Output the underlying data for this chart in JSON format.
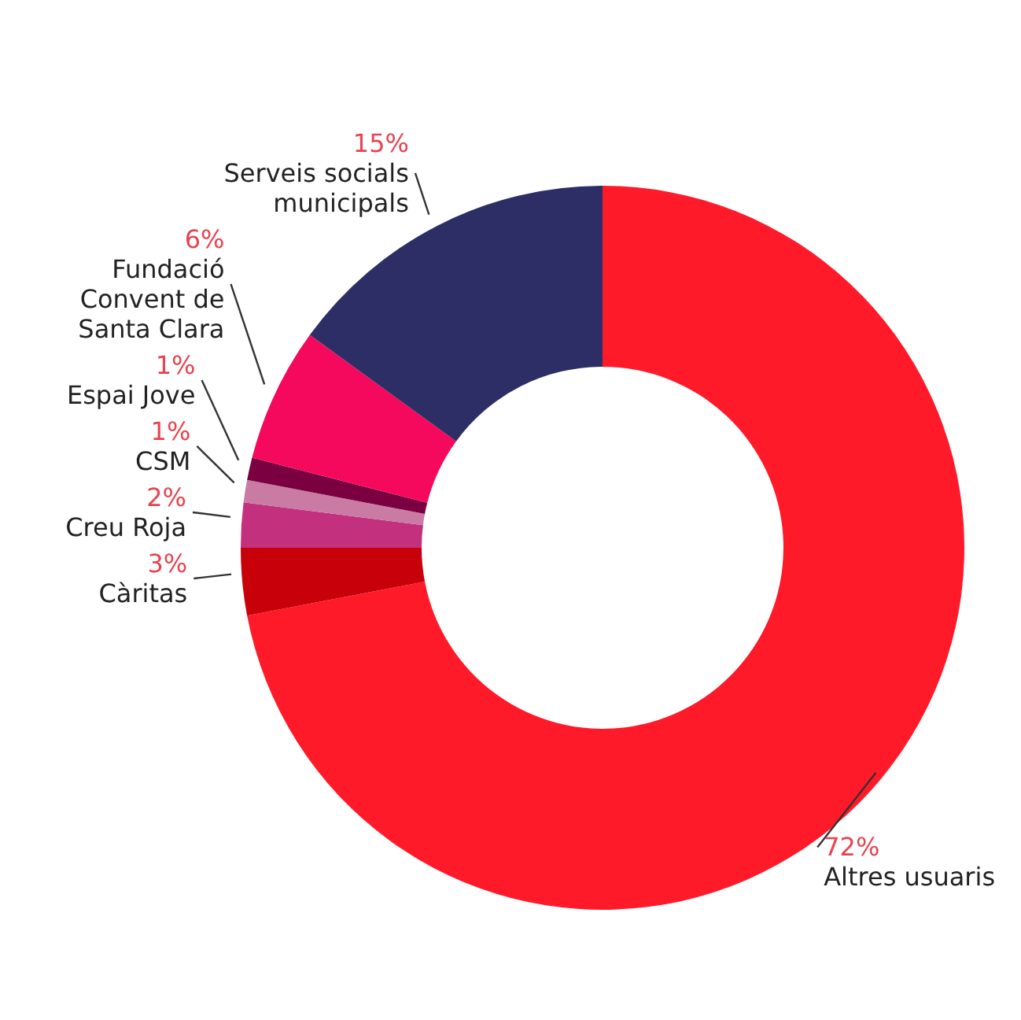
{
  "chart_data": {
    "type": "donut",
    "categories": [
      "Altres usuaris",
      "Càritas",
      "Creu Roja",
      "CSM",
      "Espai Jove",
      "Fundació Convent de Santa Clara",
      "Serveis socials municipals"
    ],
    "values": [
      72,
      3,
      2,
      1,
      1,
      6,
      15
    ],
    "value_labels": [
      "72%",
      "3%",
      "2%",
      "1%",
      "1%",
      "6%",
      "15%"
    ],
    "colors": [
      "#ff1a2a",
      "#c8000a",
      "#c2307e",
      "#c97ba3",
      "#7a0042",
      "#f5095c",
      "#2d2e66"
    ]
  }
}
